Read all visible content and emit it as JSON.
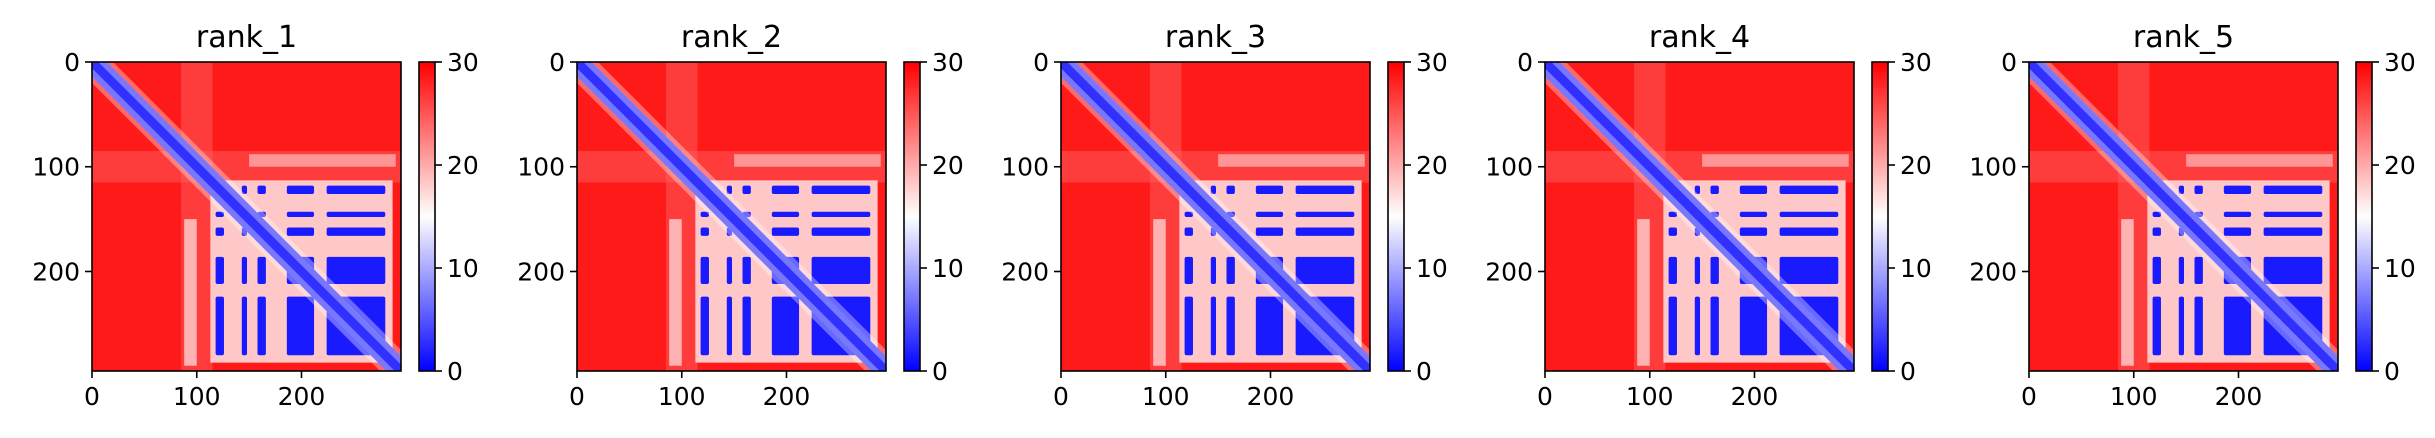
{
  "chart_data": [
    {
      "type": "heatmap",
      "title": "rank_1",
      "xlabel": "",
      "ylabel": "",
      "x_ticks": [
        0,
        100,
        200
      ],
      "y_ticks": [
        0,
        100,
        200
      ],
      "matrix_size": 295,
      "xlim": [
        0,
        295
      ],
      "ylim": [
        295,
        0
      ],
      "blocks": [
        [
          118,
          126
        ],
        [
          143,
          148
        ],
        [
          158,
          166
        ],
        [
          186,
          212
        ],
        [
          224,
          280
        ]
      ],
      "colorbar": {
        "min": 0,
        "max": 30,
        "ticks": [
          0,
          10,
          20,
          30
        ],
        "cmap": "bwr",
        "colors": [
          "#0000ff",
          "#ffffff",
          "#ff0000"
        ]
      }
    },
    {
      "type": "heatmap",
      "title": "rank_2",
      "xlabel": "",
      "ylabel": "",
      "x_ticks": [
        0,
        100,
        200
      ],
      "y_ticks": [
        0,
        100,
        200
      ],
      "matrix_size": 295,
      "xlim": [
        0,
        295
      ],
      "ylim": [
        295,
        0
      ],
      "blocks": [
        [
          118,
          126
        ],
        [
          143,
          148
        ],
        [
          158,
          166
        ],
        [
          186,
          212
        ],
        [
          224,
          280
        ]
      ],
      "colorbar": {
        "min": 0,
        "max": 30,
        "ticks": [
          0,
          10,
          20,
          30
        ],
        "cmap": "bwr",
        "colors": [
          "#0000ff",
          "#ffffff",
          "#ff0000"
        ]
      }
    },
    {
      "type": "heatmap",
      "title": "rank_3",
      "xlabel": "",
      "ylabel": "",
      "x_ticks": [
        0,
        100,
        200
      ],
      "y_ticks": [
        0,
        100,
        200
      ],
      "matrix_size": 295,
      "xlim": [
        0,
        295
      ],
      "ylim": [
        295,
        0
      ],
      "blocks": [
        [
          118,
          126
        ],
        [
          143,
          148
        ],
        [
          158,
          166
        ],
        [
          186,
          212
        ],
        [
          224,
          280
        ]
      ],
      "colorbar": {
        "min": 0,
        "max": 30,
        "ticks": [
          0,
          10,
          20,
          30
        ],
        "cmap": "bwr",
        "colors": [
          "#0000ff",
          "#ffffff",
          "#ff0000"
        ]
      }
    },
    {
      "type": "heatmap",
      "title": "rank_4",
      "xlabel": "",
      "ylabel": "",
      "x_ticks": [
        0,
        100,
        200
      ],
      "y_ticks": [
        0,
        100,
        200
      ],
      "matrix_size": 295,
      "xlim": [
        0,
        295
      ],
      "ylim": [
        295,
        0
      ],
      "blocks": [
        [
          118,
          126
        ],
        [
          143,
          148
        ],
        [
          158,
          166
        ],
        [
          186,
          212
        ],
        [
          224,
          280
        ]
      ],
      "colorbar": {
        "min": 0,
        "max": 30,
        "ticks": [
          0,
          10,
          20,
          30
        ],
        "cmap": "bwr",
        "colors": [
          "#0000ff",
          "#ffffff",
          "#ff0000"
        ]
      }
    },
    {
      "type": "heatmap",
      "title": "rank_5",
      "xlabel": "",
      "ylabel": "",
      "x_ticks": [
        0,
        100,
        200
      ],
      "y_ticks": [
        0,
        100,
        200
      ],
      "matrix_size": 295,
      "xlim": [
        0,
        295
      ],
      "ylim": [
        295,
        0
      ],
      "blocks": [
        [
          118,
          126
        ],
        [
          143,
          148
        ],
        [
          158,
          166
        ],
        [
          186,
          212
        ],
        [
          224,
          280
        ]
      ],
      "colorbar": {
        "min": 0,
        "max": 30,
        "ticks": [
          0,
          10,
          20,
          30
        ],
        "cmap": "bwr",
        "colors": [
          "#0000ff",
          "#ffffff",
          "#ff0000"
        ]
      }
    }
  ]
}
